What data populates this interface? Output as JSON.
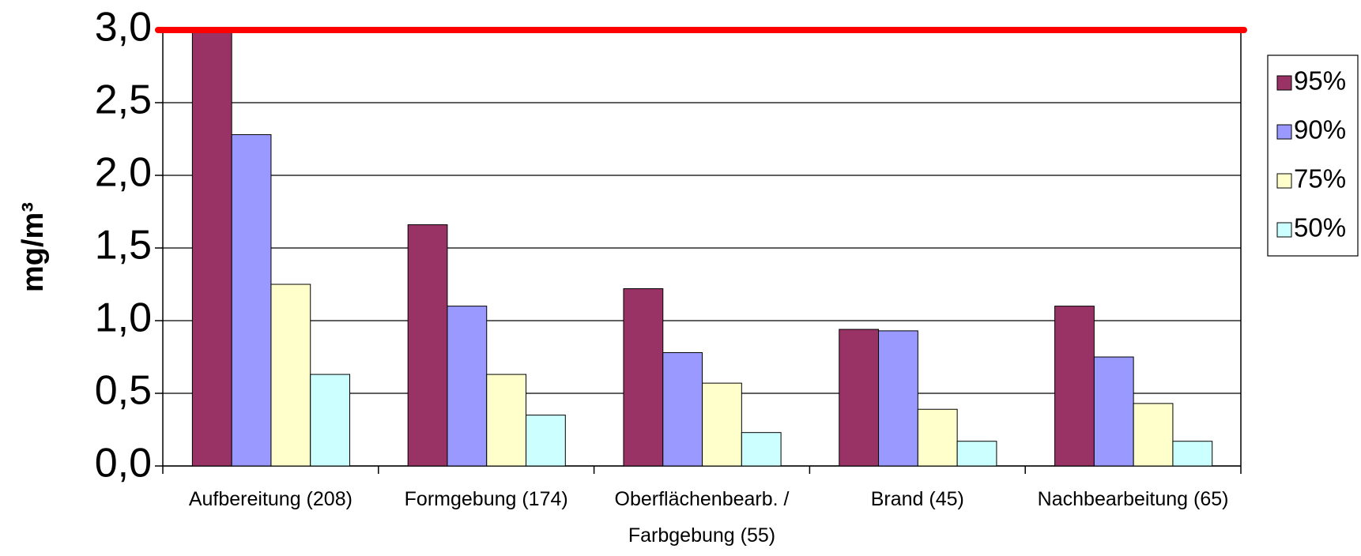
{
  "chart_data": {
    "type": "bar",
    "y_label": "mg/m³",
    "categories": [
      "Aufbereitung (208)",
      "Formgebung (174)",
      "Oberflächenbearb. / Farbgebung (55)",
      "Brand (45)",
      "Nachbearbeitung (65)"
    ],
    "series": [
      {
        "name": "95%",
        "color": "#993366",
        "values": [
          3.0,
          1.66,
          1.22,
          0.94,
          1.1
        ]
      },
      {
        "name": "90%",
        "color": "#9999ff",
        "values": [
          2.28,
          1.1,
          0.78,
          0.93,
          0.75
        ]
      },
      {
        "name": "75%",
        "color": "#ffffcc",
        "values": [
          1.25,
          0.63,
          0.57,
          0.39,
          0.43
        ]
      },
      {
        "name": "50%",
        "color": "#ccffff",
        "values": [
          0.63,
          0.35,
          0.23,
          0.17,
          0.17
        ]
      }
    ],
    "ylim": [
      0,
      3.0
    ],
    "yticks": [
      {
        "value": 0,
        "label": "0,0"
      },
      {
        "value": 0.5,
        "label": "0,5"
      },
      {
        "value": 1.0,
        "label": "1,0"
      },
      {
        "value": 1.5,
        "label": "1,5"
      },
      {
        "value": 2.0,
        "label": "2,0"
      },
      {
        "value": 2.5,
        "label": "2,5"
      },
      {
        "value": 3.0,
        "label": "3,0"
      }
    ],
    "grid": true,
    "legend": "right",
    "reference_line": {
      "value": 3.0,
      "color": "#ff0000"
    }
  }
}
